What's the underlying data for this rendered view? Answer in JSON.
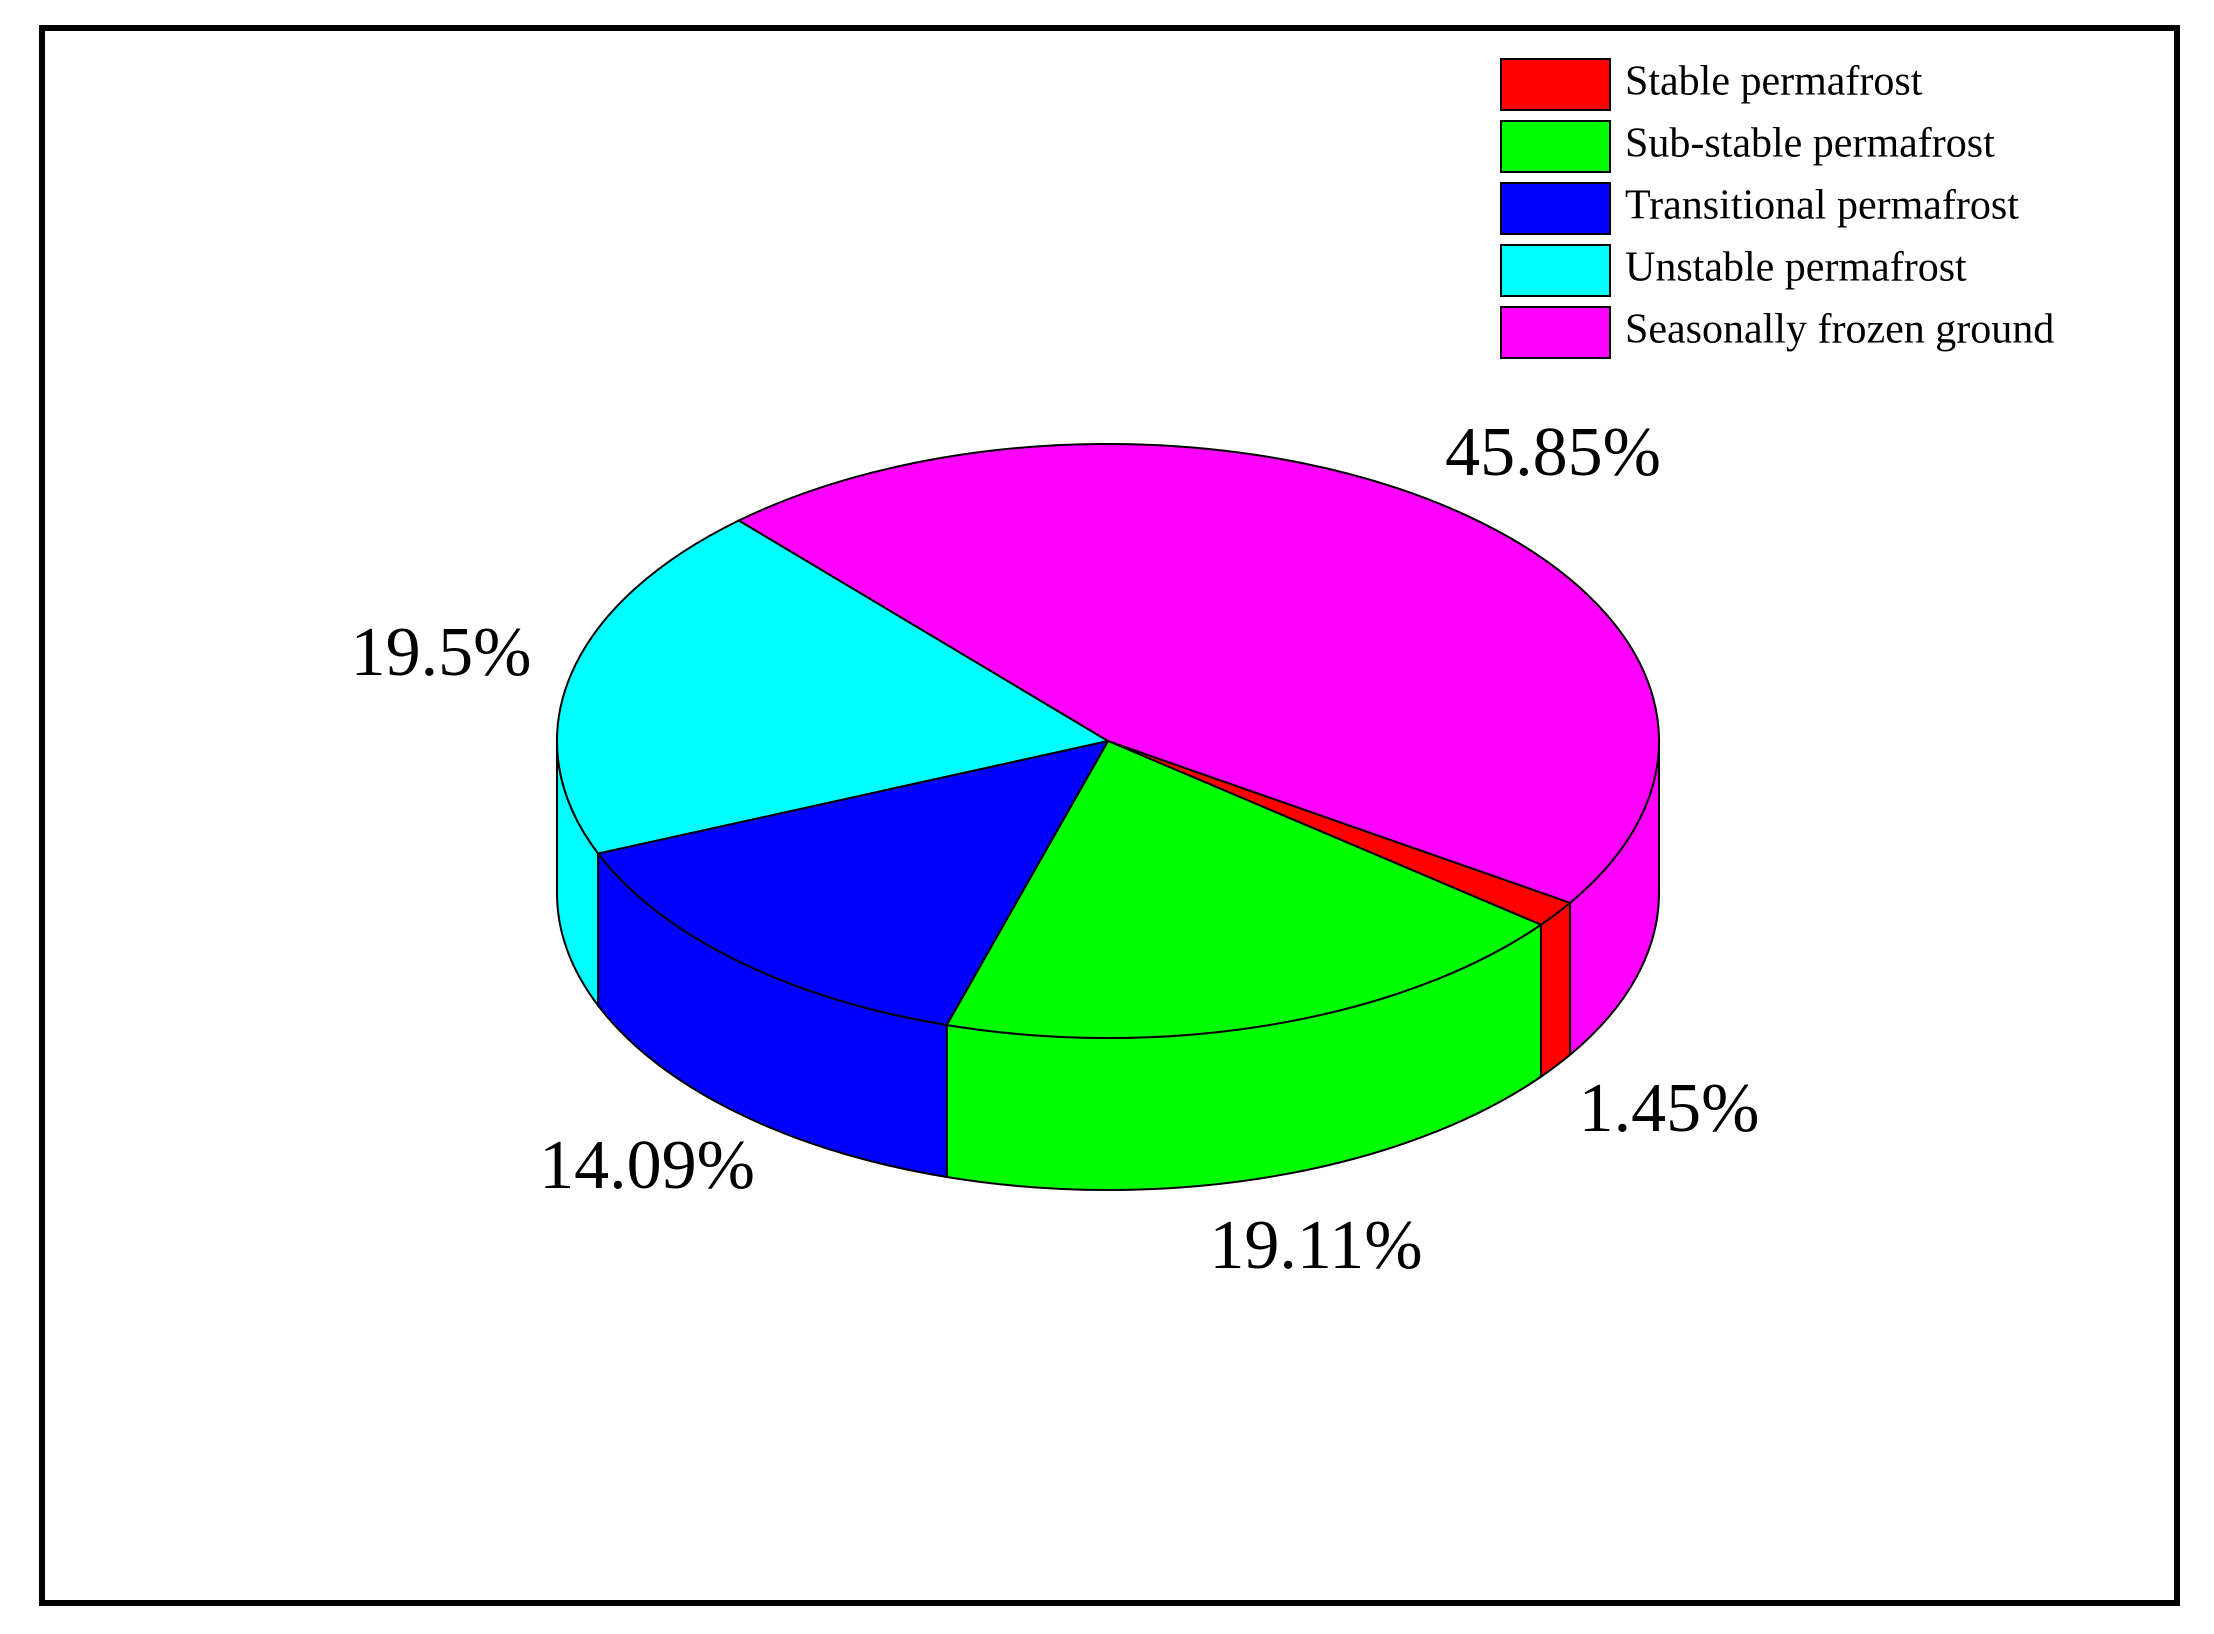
{
  "chart_data": {
    "type": "pie3d",
    "categories": [
      "Stable permafrost",
      "Sub-stable permafrost",
      "Transitional permafrost",
      "Unstable permafrost",
      "Seasonally frozen ground"
    ],
    "values": [
      1.45,
      19.11,
      14.09,
      19.5,
      45.85
    ],
    "value_labels": [
      "1.45%",
      "19.11%",
      "14.09%",
      "19.5%",
      "45.85%"
    ],
    "colors": [
      "#ff0000",
      "#00ff00",
      "#0000ff",
      "#00ffff",
      "#ff00ff"
    ],
    "legend": "upper right"
  }
}
